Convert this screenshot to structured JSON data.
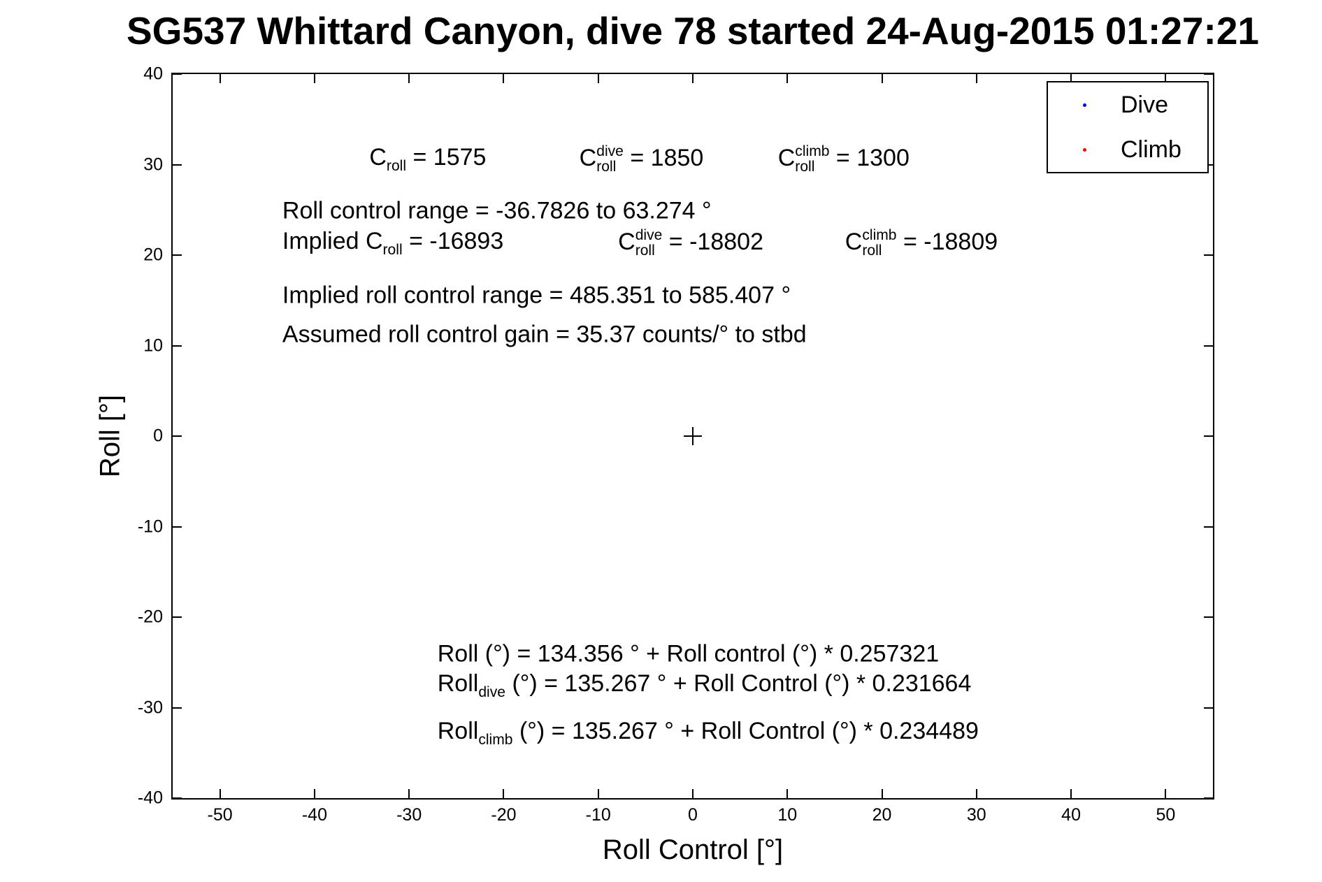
{
  "chart_data": {
    "type": "scatter",
    "title": "SG537 Whittard Canyon, dive 78 started 24-Aug-2015 01:27:21",
    "xlabel": "Roll Control [°]",
    "ylabel": "Roll [°]",
    "xlim": [
      -55,
      55
    ],
    "ylim": [
      -40,
      40
    ],
    "xticks": [
      -50,
      -40,
      -30,
      -20,
      -10,
      0,
      10,
      20,
      30,
      40,
      50
    ],
    "yticks": [
      -40,
      -30,
      -20,
      -10,
      0,
      10,
      20,
      30,
      40
    ],
    "grid": false,
    "axis_color": "#000000",
    "legend": {
      "position": "top-right",
      "items": [
        {
          "label": "Dive",
          "color": "#0000ff",
          "marker": "point"
        },
        {
          "label": "Climb",
          "color": "#ff0000",
          "marker": "point"
        }
      ]
    },
    "series": [
      {
        "name": "Dive",
        "color": "#0000ff",
        "marker": "point",
        "points": []
      },
      {
        "name": "Climb",
        "color": "#ff0000",
        "marker": "point",
        "points": []
      }
    ],
    "origin_marker": {
      "x": 0,
      "y": 0,
      "shape": "plus",
      "color": "#000000"
    },
    "annotations": [
      {
        "x": -34.2,
        "y": 30.6,
        "segments": [
          [
            "t",
            "C"
          ],
          [
            "sub",
            "roll"
          ],
          [
            "t",
            " = 1575"
          ]
        ]
      },
      {
        "x": -12.0,
        "y": 30.6,
        "segments": [
          [
            "t",
            "C"
          ],
          [
            "ss",
            "roll",
            "dive"
          ],
          [
            "t",
            " = 1850"
          ]
        ]
      },
      {
        "x": 9.0,
        "y": 30.6,
        "segments": [
          [
            "t",
            "C"
          ],
          [
            "ss",
            "roll",
            "climb"
          ],
          [
            "t",
            " = 1300"
          ]
        ]
      },
      {
        "x": -43.4,
        "y": 24.9,
        "segments": [
          [
            "t",
            "Roll control range = -36.7826 to 63.274 °"
          ]
        ]
      },
      {
        "x": -43.4,
        "y": 21.3,
        "segments": [
          [
            "t",
            "Implied C"
          ],
          [
            "sub",
            "roll"
          ],
          [
            "t",
            " = -16893"
          ]
        ]
      },
      {
        "x": -7.9,
        "y": 21.3,
        "segments": [
          [
            "t",
            "C"
          ],
          [
            "ss",
            "roll",
            "dive"
          ],
          [
            "t",
            " = -18802"
          ]
        ]
      },
      {
        "x": 16.1,
        "y": 21.3,
        "segments": [
          [
            "t",
            "C"
          ],
          [
            "ss",
            "roll",
            "climb"
          ],
          [
            "t",
            " = -18809"
          ]
        ]
      },
      {
        "x": -43.4,
        "y": 15.5,
        "segments": [
          [
            "t",
            "Implied roll control range = 485.351 to 585.407 °"
          ]
        ]
      },
      {
        "x": -43.4,
        "y": 11.2,
        "segments": [
          [
            "t",
            "Assumed roll control gain = 35.37 counts/° to stbd"
          ]
        ]
      },
      {
        "x": -27.0,
        "y": -24.1,
        "segments": [
          [
            "t",
            "Roll (°) = 134.356 ° + Roll control (°) * 0.257321"
          ]
        ]
      },
      {
        "x": -27.0,
        "y": -27.6,
        "segments": [
          [
            "t",
            "Roll"
          ],
          [
            "sub",
            "dive"
          ],
          [
            "t",
            " (°) = 135.267 ° + Roll Control (°) * 0.231664"
          ]
        ]
      },
      {
        "x": -27.0,
        "y": -32.8,
        "segments": [
          [
            "t",
            "Roll"
          ],
          [
            "sub",
            "climb"
          ],
          [
            "t",
            " (°) = 135.267 ° + Roll Control (°) * 0.234489"
          ]
        ]
      }
    ]
  }
}
